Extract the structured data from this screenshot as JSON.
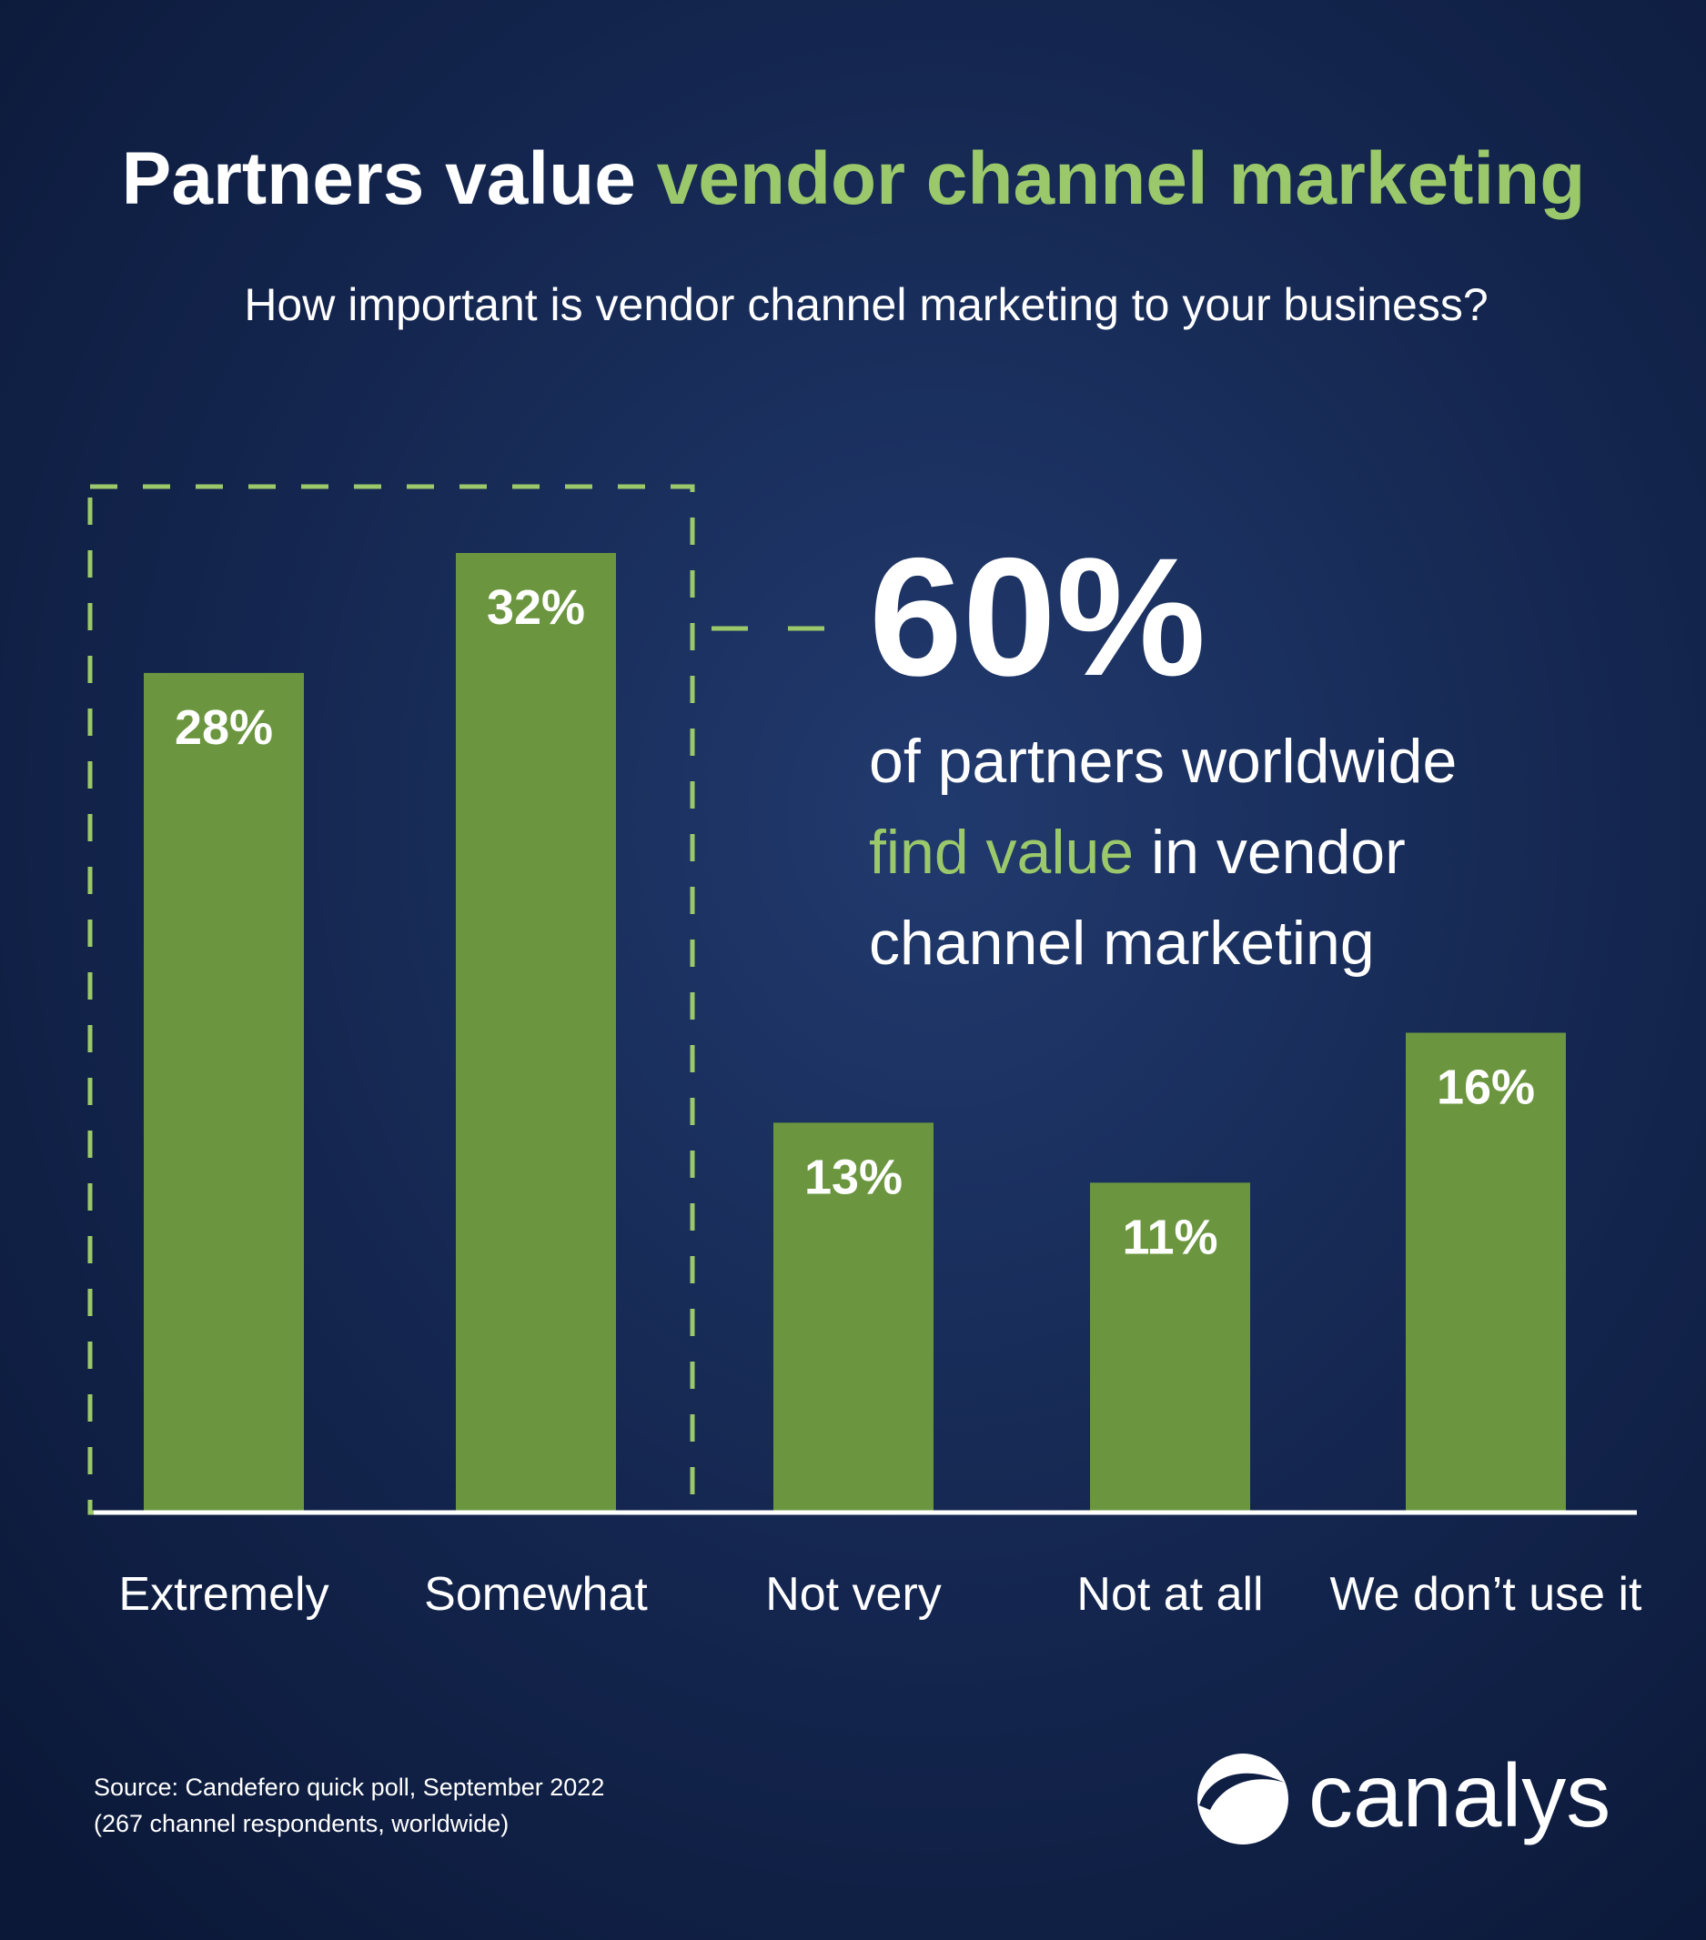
{
  "chart_data": {
    "type": "bar",
    "title": [
      "Partners value",
      "vendor channel marketing"
    ],
    "subtitle": "How important is vendor channel marketing to your business?",
    "categories": [
      "Extremely",
      "Somewhat",
      "Not very",
      "Not at all",
      "We don’t use it"
    ],
    "values": [
      28,
      32,
      13,
      11,
      16
    ],
    "value_labels": [
      "28%",
      "32%",
      "13%",
      "11%",
      "16%"
    ],
    "color": "#6b963f",
    "highlight_color": "#9bc86a",
    "callout": {
      "value": 60,
      "value_label": "60%",
      "lines": [
        [
          "of partners worldwide"
        ],
        [
          "find value",
          "in vendor"
        ],
        [
          "channel marketing"
        ]
      ]
    },
    "source": [
      "Source: Candefero quick poll, September 2022",
      "(267 channel respondents, worldwide)"
    ],
    "logo": "canalys"
  }
}
